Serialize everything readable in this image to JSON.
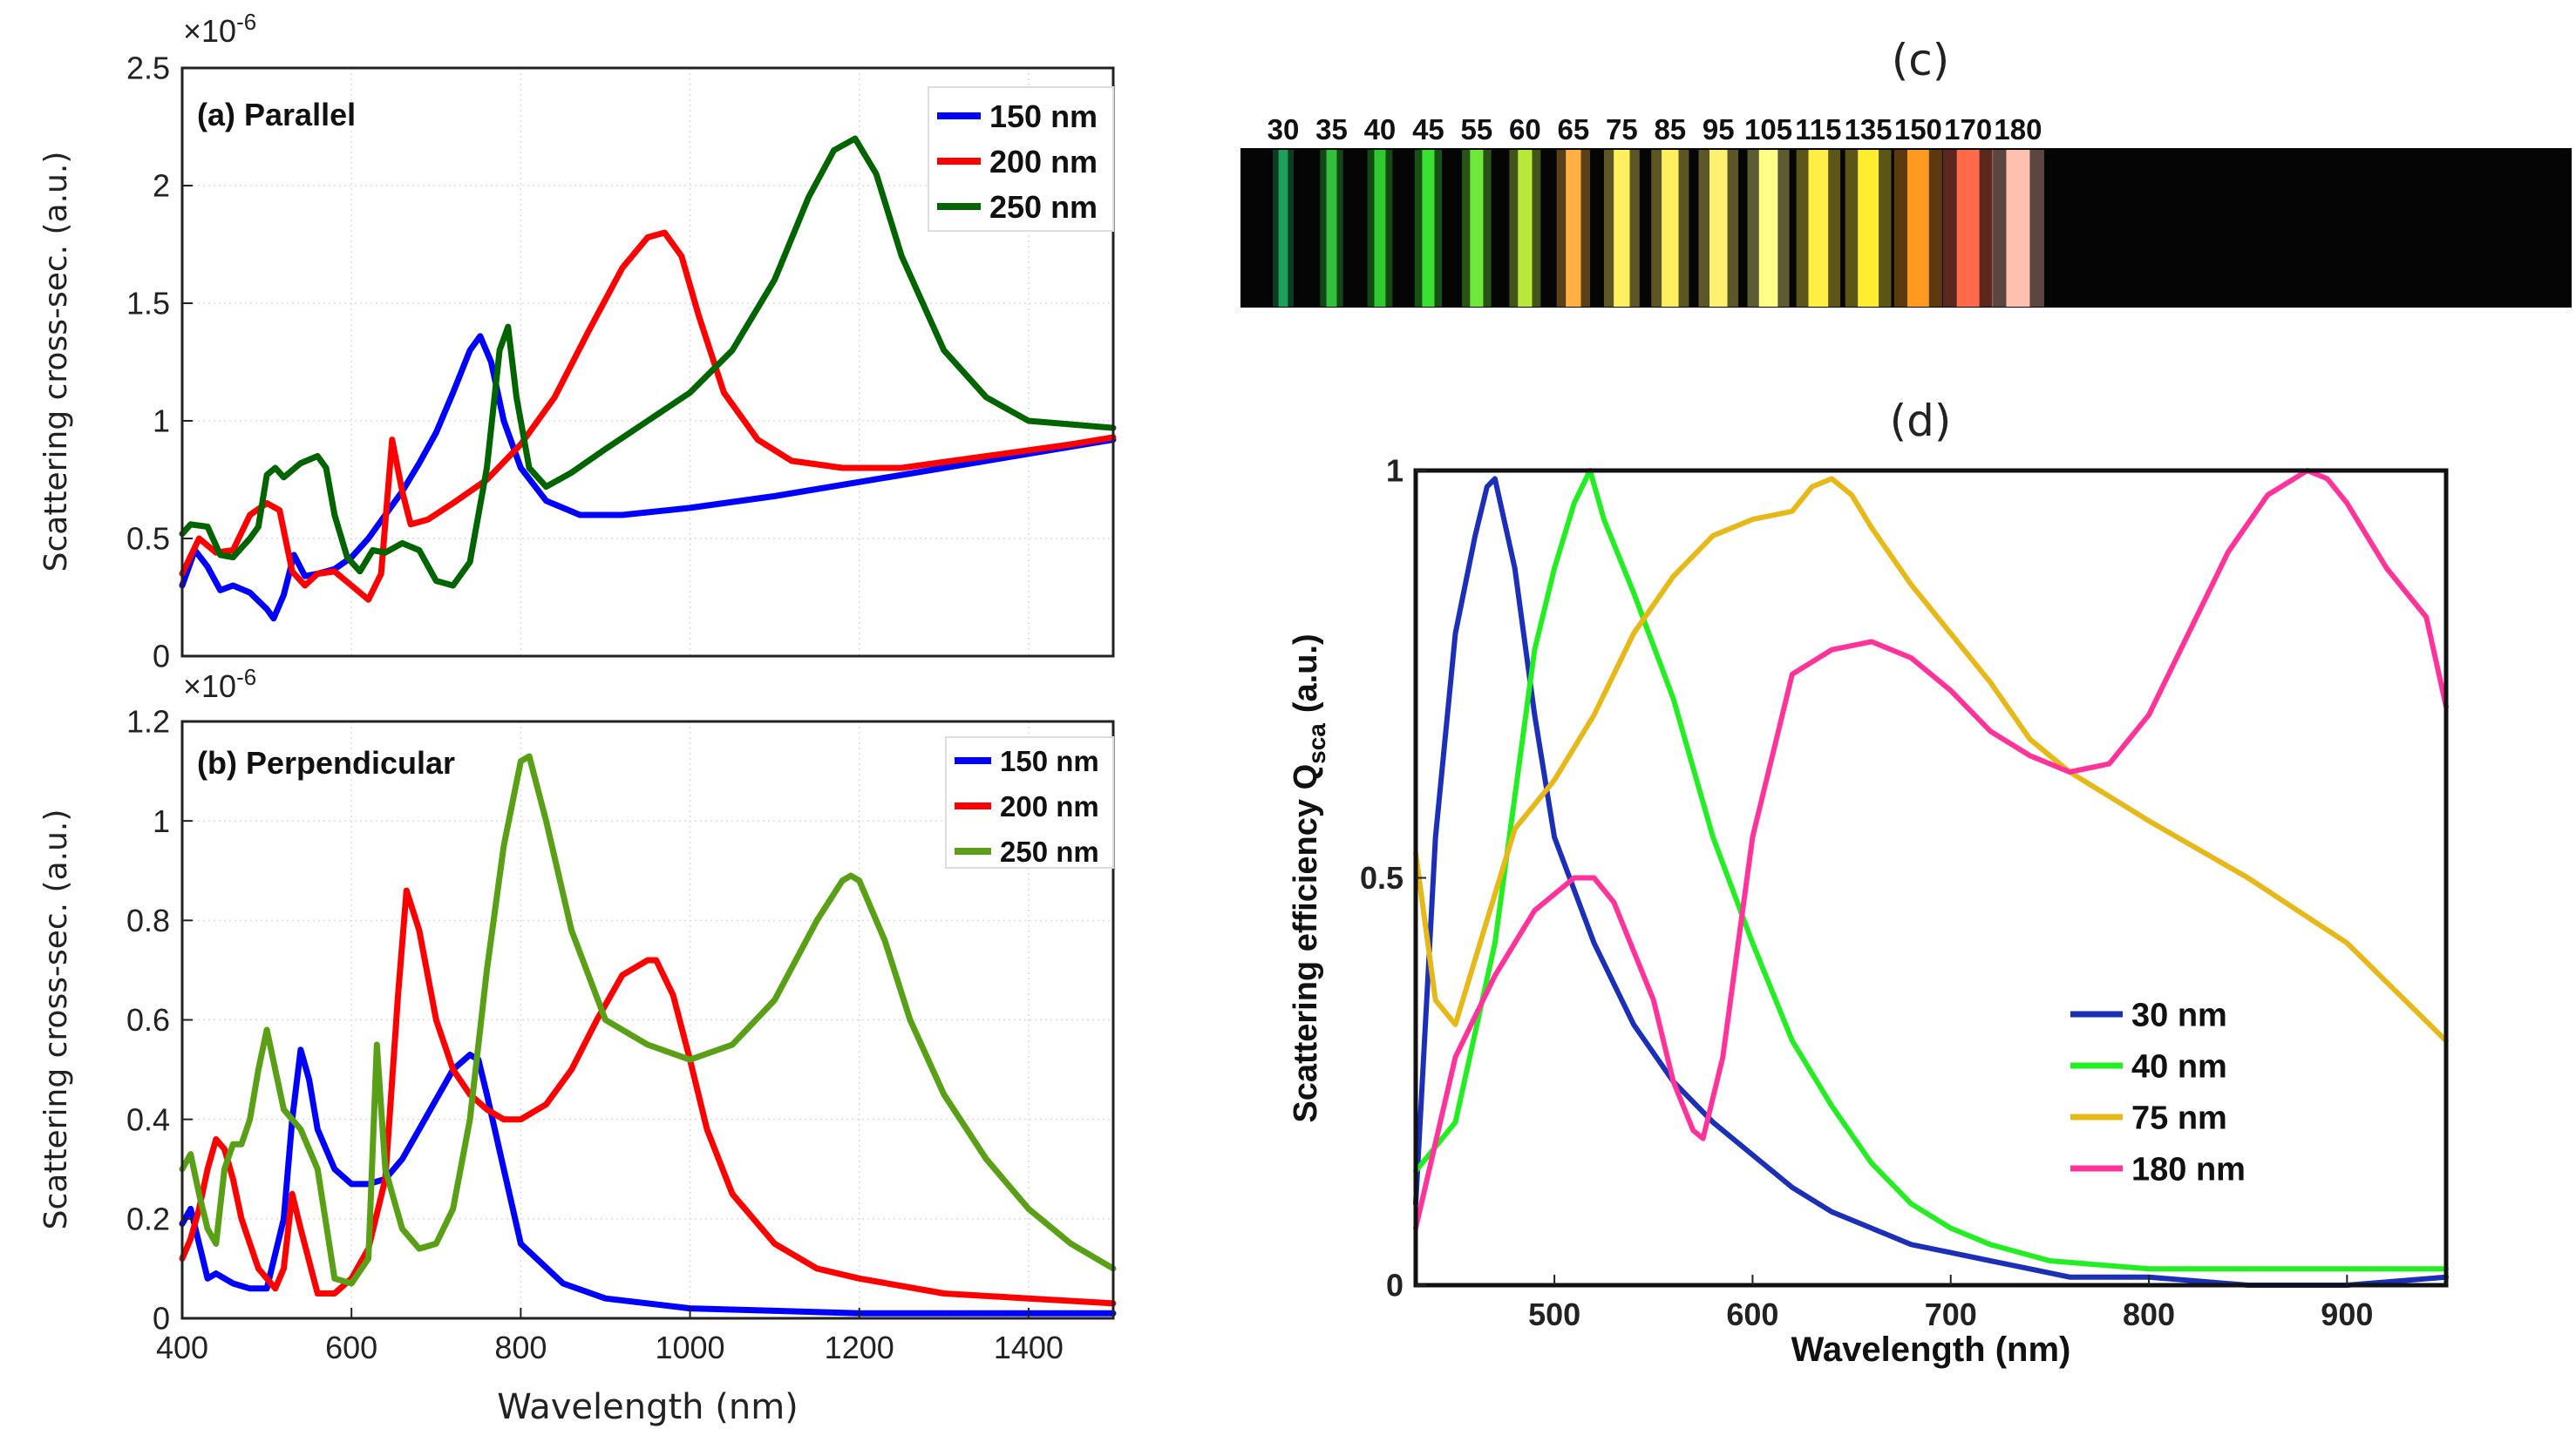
{
  "chart_data": [
    {
      "id": "a",
      "type": "line",
      "panel_label": "(a) Parallel",
      "xlim": [
        400,
        1500
      ],
      "ylim": [
        0,
        2.5
      ],
      "y_multiplier": "×10",
      "y_multiplier_exp": "-6",
      "ylabel": "Scattering cross-sec. (a.u.)",
      "xlabel": "",
      "yticks": [
        0,
        0.5,
        1,
        1.5,
        2,
        2.5
      ],
      "ytick_labels": [
        "0",
        "0.5",
        "1",
        "1.5",
        "2",
        "2.5"
      ],
      "xticks": [
        400,
        600,
        800,
        1000,
        1200,
        1400
      ],
      "xtick_labels": [],
      "grid": true,
      "legend": "top-right",
      "series": [
        {
          "name": "150 nm",
          "color": "#0000ff",
          "x": [
            400,
            415,
            430,
            445,
            460,
            480,
            500,
            508,
            520,
            532,
            545,
            560,
            580,
            600,
            620,
            640,
            660,
            680,
            700,
            720,
            740,
            752,
            765,
            780,
            800,
            830,
            870,
            920,
            1000,
            1100,
            1200,
            1300,
            1400,
            1500
          ],
          "y": [
            0.3,
            0.45,
            0.38,
            0.28,
            0.3,
            0.27,
            0.2,
            0.16,
            0.26,
            0.43,
            0.34,
            0.35,
            0.37,
            0.42,
            0.5,
            0.6,
            0.7,
            0.82,
            0.95,
            1.12,
            1.3,
            1.36,
            1.25,
            1.0,
            0.8,
            0.66,
            0.6,
            0.6,
            0.63,
            0.68,
            0.74,
            0.8,
            0.86,
            0.92
          ]
        },
        {
          "name": "200 nm",
          "color": "#ff0000",
          "x": [
            400,
            420,
            440,
            460,
            480,
            500,
            515,
            530,
            545,
            560,
            580,
            600,
            620,
            635,
            648,
            660,
            670,
            690,
            720,
            760,
            800,
            840,
            880,
            920,
            950,
            970,
            990,
            1010,
            1040,
            1080,
            1120,
            1180,
            1250,
            1350,
            1450,
            1500
          ],
          "y": [
            0.35,
            0.5,
            0.44,
            0.45,
            0.6,
            0.65,
            0.62,
            0.36,
            0.3,
            0.35,
            0.36,
            0.3,
            0.24,
            0.35,
            0.92,
            0.7,
            0.56,
            0.58,
            0.65,
            0.75,
            0.9,
            1.1,
            1.38,
            1.65,
            1.78,
            1.8,
            1.7,
            1.45,
            1.12,
            0.92,
            0.83,
            0.8,
            0.8,
            0.85,
            0.9,
            0.93
          ]
        },
        {
          "name": "250 nm",
          "color": "#006400",
          "x": [
            400,
            410,
            430,
            445,
            460,
            480,
            490,
            500,
            510,
            520,
            540,
            560,
            570,
            580,
            595,
            610,
            625,
            640,
            660,
            680,
            700,
            720,
            740,
            760,
            775,
            785,
            795,
            810,
            830,
            860,
            900,
            950,
            1000,
            1050,
            1100,
            1140,
            1170,
            1195,
            1220,
            1250,
            1300,
            1350,
            1400,
            1500
          ],
          "y": [
            0.52,
            0.56,
            0.55,
            0.43,
            0.42,
            0.5,
            0.55,
            0.77,
            0.8,
            0.76,
            0.82,
            0.85,
            0.8,
            0.6,
            0.42,
            0.36,
            0.45,
            0.44,
            0.48,
            0.45,
            0.32,
            0.3,
            0.4,
            0.8,
            1.3,
            1.4,
            1.1,
            0.8,
            0.72,
            0.78,
            0.88,
            1.0,
            1.12,
            1.3,
            1.6,
            1.95,
            2.15,
            2.2,
            2.05,
            1.7,
            1.3,
            1.1,
            1.0,
            0.97
          ]
        }
      ]
    },
    {
      "id": "b",
      "type": "line",
      "panel_label": "(b) Perpendicular",
      "xlim": [
        400,
        1500
      ],
      "ylim": [
        0,
        1.2
      ],
      "y_multiplier": "×10",
      "y_multiplier_exp": "-6",
      "ylabel": "Scattering cross-sec. (a.u.)",
      "xlabel": "Wavelength (nm)",
      "yticks": [
        0,
        0.2,
        0.4,
        0.6,
        0.8,
        1,
        1.2
      ],
      "ytick_labels": [
        "0",
        "0.2",
        "0.4",
        "0.6",
        "0.8",
        "1",
        "1.2"
      ],
      "xticks": [
        400,
        600,
        800,
        1000,
        1200,
        1400
      ],
      "xtick_labels": [
        "400",
        "600",
        "800",
        "1000",
        "1200",
        "1400"
      ],
      "grid": true,
      "legend": "top-right",
      "series": [
        {
          "name": "150 nm",
          "color": "#0000ff",
          "x": [
            400,
            410,
            420,
            430,
            440,
            460,
            480,
            500,
            520,
            530,
            540,
            550,
            560,
            580,
            600,
            620,
            640,
            660,
            680,
            700,
            720,
            740,
            750,
            760,
            780,
            800,
            850,
            900,
            1000,
            1100,
            1200,
            1300,
            1400,
            1500
          ],
          "y": [
            0.19,
            0.22,
            0.15,
            0.08,
            0.09,
            0.07,
            0.06,
            0.06,
            0.2,
            0.4,
            0.54,
            0.48,
            0.38,
            0.3,
            0.27,
            0.27,
            0.28,
            0.32,
            0.38,
            0.44,
            0.5,
            0.53,
            0.52,
            0.45,
            0.3,
            0.15,
            0.07,
            0.04,
            0.02,
            0.015,
            0.01,
            0.01,
            0.01,
            0.01
          ]
        },
        {
          "name": "200 nm",
          "color": "#ff0000",
          "x": [
            400,
            410,
            420,
            430,
            440,
            450,
            460,
            470,
            480,
            490,
            500,
            510,
            520,
            530,
            540,
            560,
            580,
            600,
            620,
            640,
            655,
            665,
            680,
            700,
            720,
            740,
            760,
            780,
            800,
            830,
            860,
            890,
            920,
            950,
            960,
            980,
            1000,
            1020,
            1050,
            1100,
            1150,
            1200,
            1300,
            1400,
            1500
          ],
          "y": [
            0.12,
            0.16,
            0.22,
            0.3,
            0.36,
            0.34,
            0.28,
            0.2,
            0.15,
            0.1,
            0.08,
            0.06,
            0.1,
            0.25,
            0.18,
            0.05,
            0.05,
            0.08,
            0.14,
            0.28,
            0.65,
            0.86,
            0.78,
            0.6,
            0.5,
            0.45,
            0.42,
            0.4,
            0.4,
            0.43,
            0.5,
            0.6,
            0.69,
            0.72,
            0.72,
            0.65,
            0.52,
            0.38,
            0.25,
            0.15,
            0.1,
            0.08,
            0.05,
            0.04,
            0.03
          ]
        },
        {
          "name": "250 nm",
          "color": "#5aa017",
          "x": [
            400,
            410,
            420,
            430,
            440,
            450,
            460,
            470,
            480,
            490,
            500,
            510,
            520,
            540,
            560,
            580,
            600,
            620,
            630,
            640,
            660,
            680,
            700,
            720,
            740,
            760,
            780,
            800,
            810,
            830,
            860,
            900,
            950,
            1000,
            1050,
            1100,
            1150,
            1180,
            1190,
            1200,
            1230,
            1260,
            1300,
            1350,
            1400,
            1450,
            1500
          ],
          "y": [
            0.3,
            0.33,
            0.25,
            0.18,
            0.15,
            0.3,
            0.35,
            0.35,
            0.4,
            0.5,
            0.58,
            0.5,
            0.42,
            0.38,
            0.3,
            0.08,
            0.07,
            0.12,
            0.55,
            0.3,
            0.18,
            0.14,
            0.15,
            0.22,
            0.4,
            0.7,
            0.95,
            1.12,
            1.13,
            1.0,
            0.78,
            0.6,
            0.55,
            0.52,
            0.55,
            0.64,
            0.8,
            0.88,
            0.89,
            0.88,
            0.76,
            0.6,
            0.45,
            0.32,
            0.22,
            0.15,
            0.1
          ]
        }
      ]
    },
    {
      "id": "c",
      "type": "image",
      "panel_label": "(c)",
      "strip_labels": [
        "30",
        "35",
        "40",
        "45",
        "55",
        "60",
        "65",
        "75",
        "85",
        "95",
        "105",
        "115",
        "135",
        "150",
        "170",
        "180"
      ],
      "stripe_colors": [
        "#1fa05a",
        "#33c03a",
        "#2fc82f",
        "#3ce034",
        "#6ee83a",
        "#b8e83c",
        "#ffb040",
        "#fff060",
        "#ffee60",
        "#fff070",
        "#ffff88",
        "#ffee44",
        "#ffee30",
        "#ff9a20",
        "#ff6a4a",
        "#ffc0b0"
      ]
    },
    {
      "id": "d",
      "type": "line",
      "panel_label": "(d)",
      "xlim": [
        430,
        950
      ],
      "ylim": [
        0,
        1
      ],
      "ylabel": "Scattering efficiency Q",
      "ylabel_sub": "sca",
      "ylabel_tail": "(a.u.)",
      "xlabel": "Wavelength (nm)",
      "yticks": [
        0,
        0.5,
        1
      ],
      "ytick_labels": [
        "0",
        "0.5",
        "1"
      ],
      "xticks": [
        500,
        600,
        700,
        800,
        900
      ],
      "xtick_labels": [
        "500",
        "600",
        "700",
        "800",
        "900"
      ],
      "grid": false,
      "legend": "lower-right",
      "series": [
        {
          "name": "30 nm",
          "color": "#1b2fb8",
          "x": [
            430,
            440,
            450,
            460,
            466,
            470,
            480,
            490,
            500,
            520,
            540,
            560,
            580,
            600,
            620,
            640,
            660,
            680,
            700,
            720,
            740,
            760,
            800,
            850,
            900,
            950
          ],
          "y": [
            0.1,
            0.55,
            0.8,
            0.92,
            0.98,
            0.99,
            0.88,
            0.7,
            0.55,
            0.42,
            0.32,
            0.25,
            0.2,
            0.16,
            0.12,
            0.09,
            0.07,
            0.05,
            0.04,
            0.03,
            0.02,
            0.01,
            0.01,
            0.0,
            0.0,
            0.01
          ]
        },
        {
          "name": "40 nm",
          "color": "#22ee22",
          "x": [
            430,
            450,
            470,
            480,
            490,
            500,
            510,
            518,
            525,
            540,
            560,
            580,
            600,
            620,
            640,
            660,
            680,
            700,
            720,
            750,
            800,
            850,
            900,
            950
          ],
          "y": [
            0.14,
            0.2,
            0.42,
            0.6,
            0.78,
            0.88,
            0.96,
            1.0,
            0.94,
            0.85,
            0.72,
            0.55,
            0.42,
            0.3,
            0.22,
            0.15,
            0.1,
            0.07,
            0.05,
            0.03,
            0.02,
            0.02,
            0.02,
            0.02
          ]
        },
        {
          "name": "75 nm",
          "color": "#e6b818",
          "x": [
            430,
            440,
            450,
            460,
            470,
            480,
            500,
            520,
            540,
            560,
            580,
            600,
            620,
            630,
            640,
            650,
            660,
            680,
            700,
            720,
            740,
            760,
            780,
            800,
            850,
            900,
            950
          ],
          "y": [
            0.53,
            0.35,
            0.32,
            0.4,
            0.48,
            0.56,
            0.62,
            0.7,
            0.8,
            0.87,
            0.92,
            0.94,
            0.95,
            0.98,
            0.99,
            0.97,
            0.93,
            0.86,
            0.8,
            0.74,
            0.67,
            0.63,
            0.6,
            0.57,
            0.5,
            0.42,
            0.3
          ]
        },
        {
          "name": "180 nm",
          "color": "#ff3399",
          "x": [
            430,
            450,
            470,
            490,
            510,
            520,
            530,
            550,
            560,
            570,
            575,
            585,
            600,
            620,
            640,
            660,
            680,
            700,
            720,
            740,
            760,
            780,
            800,
            820,
            840,
            860,
            880,
            890,
            900,
            920,
            940,
            950
          ],
          "y": [
            0.07,
            0.28,
            0.38,
            0.46,
            0.5,
            0.5,
            0.47,
            0.35,
            0.25,
            0.19,
            0.18,
            0.28,
            0.55,
            0.75,
            0.78,
            0.79,
            0.77,
            0.73,
            0.68,
            0.65,
            0.63,
            0.64,
            0.7,
            0.8,
            0.9,
            0.97,
            1.0,
            0.99,
            0.96,
            0.88,
            0.82,
            0.71
          ]
        }
      ]
    }
  ]
}
